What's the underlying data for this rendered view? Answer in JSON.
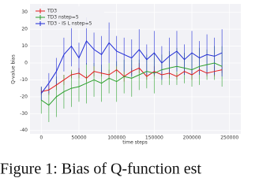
{
  "chart_data": {
    "type": "line",
    "xlabel": "time steps",
    "ylabel": "Q-value bias",
    "caption": "Figure 1: Bias of Q-function est",
    "x": [
      0,
      10000,
      20000,
      30000,
      40000,
      50000,
      60000,
      70000,
      80000,
      90000,
      100000,
      110000,
      120000,
      130000,
      140000,
      150000,
      160000,
      170000,
      180000,
      190000,
      200000,
      210000,
      220000,
      230000,
      240000
    ],
    "series": [
      {
        "name": "TD3",
        "color": "#e41a1c",
        "values": [
          -17,
          -16,
          -13,
          -10,
          -7,
          -6,
          -9,
          -5,
          -6,
          -7,
          -4,
          -8,
          -5,
          -3,
          -8,
          -5,
          -7,
          -6,
          -8,
          -5,
          -7,
          -4,
          -6,
          -5,
          -4
        ],
        "errors": [
          2,
          3,
          3,
          3,
          2,
          3,
          2,
          3,
          2,
          3,
          2,
          3,
          2,
          3,
          2,
          3,
          2,
          3,
          2,
          2,
          3,
          2,
          2,
          3,
          2
        ]
      },
      {
        "name": "TD3 nstep=5",
        "color": "#2ca02c",
        "values": [
          -22,
          -25,
          -20,
          -17,
          -15,
          -14,
          -12,
          -10,
          -12,
          -9,
          -11,
          -8,
          -9,
          -7,
          -5,
          -6,
          -4,
          -3,
          -2,
          -3,
          -4,
          -2,
          -1,
          0,
          -2
        ],
        "errors": [
          8,
          10,
          12,
          10,
          11,
          9,
          12,
          10,
          11,
          9,
          12,
          10,
          11,
          9,
          10,
          12,
          9,
          10,
          11,
          9,
          10,
          11,
          9,
          10,
          12
        ]
      },
      {
        "name": "TD3 - IS L nstep=5",
        "color": "#1f2bd6",
        "values": [
          -18,
          -12,
          -5,
          5,
          10,
          3,
          13,
          8,
          5,
          12,
          7,
          5,
          3,
          8,
          2,
          6,
          0,
          4,
          7,
          2,
          6,
          3,
          5,
          4,
          6
        ],
        "errors": [
          4,
          6,
          8,
          10,
          12,
          9,
          14,
          10,
          11,
          12,
          9,
          10,
          11,
          12,
          9,
          13,
          10,
          11,
          12,
          9,
          13,
          10,
          12,
          11,
          14
        ]
      }
    ],
    "xlim": [
      -15000,
      265000
    ],
    "ylim": [
      -42,
      35
    ],
    "xticks": [
      0,
      50000,
      100000,
      150000,
      200000,
      250000
    ],
    "yticks": [
      30,
      20,
      10,
      0,
      -10,
      -20,
      -30,
      -40
    ],
    "grid": true,
    "legend": "upper left"
  }
}
